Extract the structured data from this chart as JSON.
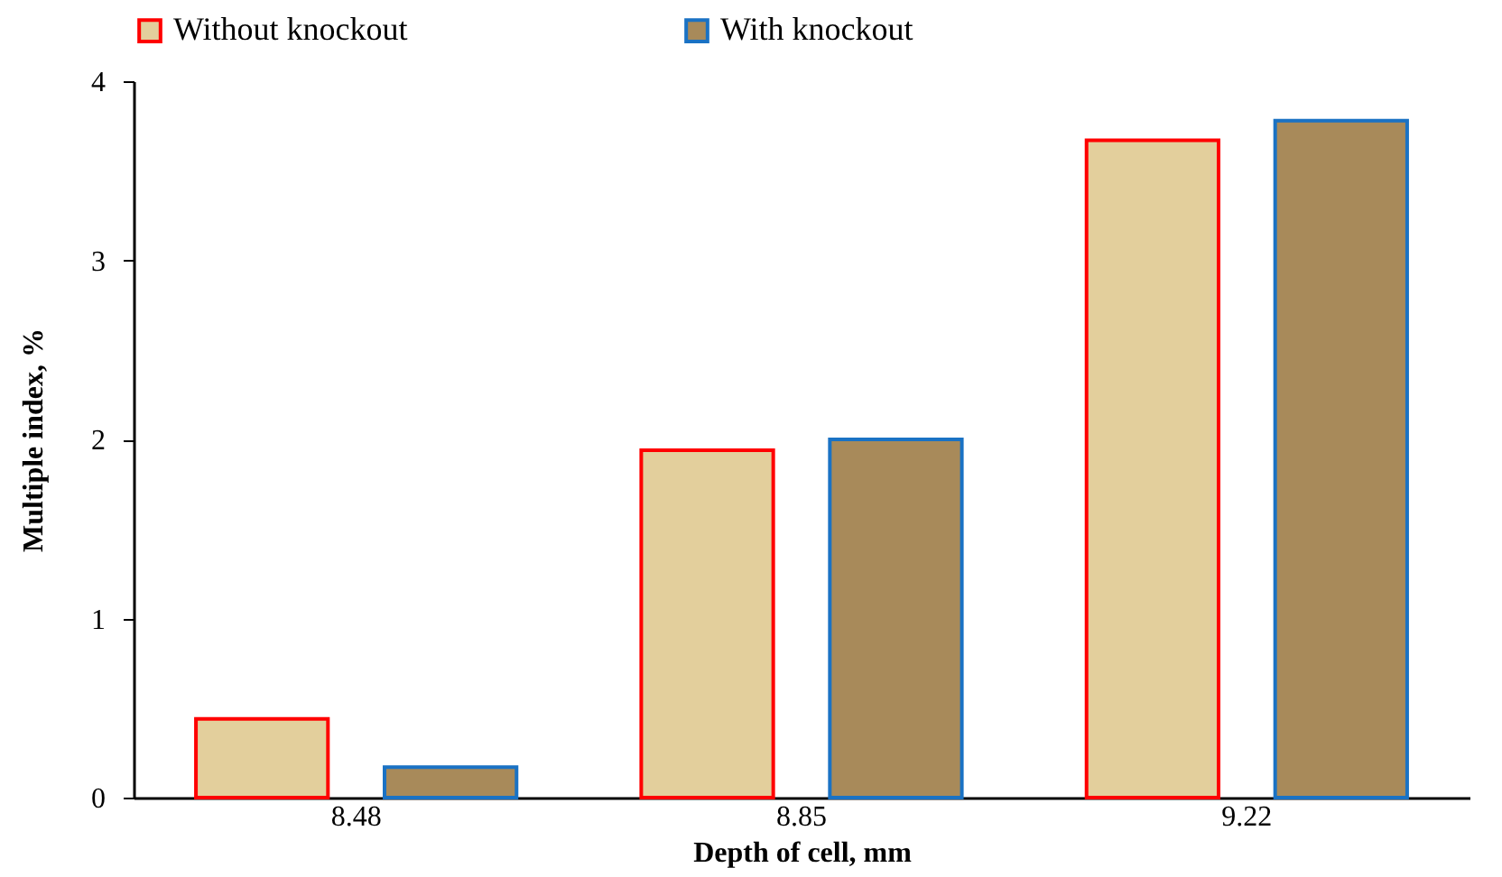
{
  "chart_data": {
    "type": "bar",
    "xlabel": "Depth of cell, mm",
    "ylabel": "Multiple index, %",
    "categories": [
      "8.48",
      "8.85",
      "9.22"
    ],
    "series": [
      {
        "name": "Without knockout",
        "color": "#ff0000",
        "values": [
          0.44,
          1.94,
          3.67
        ]
      },
      {
        "name": "With knockout",
        "color": "#1a72c4",
        "values": [
          0.17,
          2.0,
          3.78
        ]
      }
    ],
    "ylim": [
      0,
      4
    ],
    "yticks": [
      0,
      1,
      2,
      3,
      4
    ],
    "grid": false,
    "legend": "top"
  }
}
